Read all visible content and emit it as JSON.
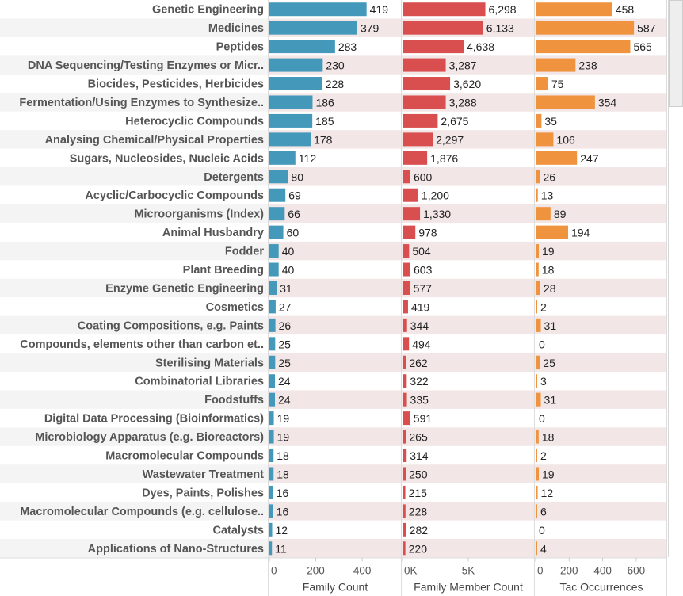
{
  "chart_data": {
    "type": "bar",
    "orientation": "horizontal",
    "title": "",
    "categories": [
      "Genetic Engineering",
      "Medicines",
      "Peptides",
      "DNA Sequencing/Testing Enzymes or Micr..",
      "Biocides, Pesticides, Herbicides",
      "Fermentation/Using Enzymes to Synthesize..",
      "Heterocyclic Compounds",
      "Analysing Chemical/Physical Properties",
      "Sugars, Nucleosides, Nucleic Acids",
      "Detergents",
      "Acyclic/Carbocyclic Compounds",
      "Microorganisms (Index)",
      "Animal Husbandry",
      "Fodder",
      "Plant Breeding",
      "Enzyme Genetic Engineering",
      "Cosmetics",
      "Coating Compositions, e.g. Paints",
      "Compounds, elements other than carbon et..",
      "Sterilising Materials",
      "Combinatorial Libraries",
      "Foodstuffs",
      "Digital Data Processing (Bioinformatics)",
      "Microbiology Apparatus (e.g. Bioreactors)",
      "Macromolecular Compounds",
      "Wastewater Treatment",
      "Dyes, Paints, Polishes",
      "Macromolecular Compounds (e.g. cellulose..",
      "Catalysts",
      "Applications of Nano-Structures"
    ],
    "series": [
      {
        "name": "Family Count",
        "xlabel": "Family Count",
        "color": "#4499bb",
        "xlim": [
          0,
          567
        ],
        "ticks": [
          0,
          200,
          400
        ],
        "tick_labels": [
          "0",
          "200",
          "400"
        ],
        "values": [
          419,
          379,
          283,
          230,
          228,
          186,
          185,
          178,
          112,
          80,
          69,
          66,
          60,
          40,
          40,
          31,
          27,
          26,
          25,
          25,
          24,
          24,
          19,
          19,
          18,
          18,
          16,
          16,
          12,
          11
        ],
        "value_labels": [
          "419",
          "379",
          "283",
          "230",
          "228",
          "186",
          "185",
          "178",
          "112",
          "80",
          "69",
          "66",
          "60",
          "40",
          "40",
          "31",
          "27",
          "26",
          "25",
          "25",
          "24",
          "24",
          "19",
          "19",
          "18",
          "18",
          "16",
          "16",
          "12",
          "11"
        ]
      },
      {
        "name": "Family Member Count",
        "xlabel": "Family Member Count",
        "color": "#d94f4f",
        "xlim": [
          0,
          10000
        ],
        "ticks": [
          0,
          5000
        ],
        "tick_labels": [
          "0K",
          "5K"
        ],
        "values": [
          6298,
          6133,
          4638,
          3287,
          3620,
          3288,
          2675,
          2297,
          1876,
          600,
          1200,
          1330,
          978,
          504,
          603,
          577,
          419,
          344,
          494,
          262,
          322,
          335,
          591,
          265,
          314,
          250,
          215,
          228,
          282,
          220
        ],
        "value_labels": [
          "6,298",
          "6,133",
          "4,638",
          "3,287",
          "3,620",
          "3,288",
          "2,675",
          "2,297",
          "1,876",
          "600",
          "1,200",
          "1,330",
          "978",
          "504",
          "603",
          "577",
          "419",
          "344",
          "494",
          "262",
          "322",
          "335",
          "591",
          "265",
          "314",
          "250",
          "215",
          "228",
          "282",
          "220"
        ]
      },
      {
        "name": "Tac Occurrences",
        "xlabel": "Tac Occurrences",
        "color": "#f0933e",
        "xlim": [
          0,
          785
        ],
        "ticks": [
          0,
          200,
          400,
          600
        ],
        "tick_labels": [
          "0",
          "200",
          "400",
          "600"
        ],
        "values": [
          458,
          587,
          565,
          238,
          75,
          354,
          35,
          106,
          247,
          26,
          13,
          89,
          194,
          19,
          18,
          28,
          2,
          31,
          0,
          25,
          3,
          31,
          0,
          18,
          2,
          19,
          12,
          6,
          0,
          4
        ],
        "value_labels": [
          "458",
          "587",
          "565",
          "238",
          "75",
          "354",
          "35",
          "106",
          "247",
          "26",
          "13",
          "89",
          "194",
          "19",
          "18",
          "28",
          "2",
          "31",
          "0",
          "25",
          "3",
          "31",
          "0",
          "18",
          "2",
          "19",
          "12",
          "6",
          "0",
          "4"
        ]
      }
    ],
    "grid": false,
    "legend": "none",
    "row_banding": true
  },
  "colors": {
    "label_band": "#f4f4f4",
    "chart_band": "#f2e6e6",
    "divider": "#dddddd"
  }
}
